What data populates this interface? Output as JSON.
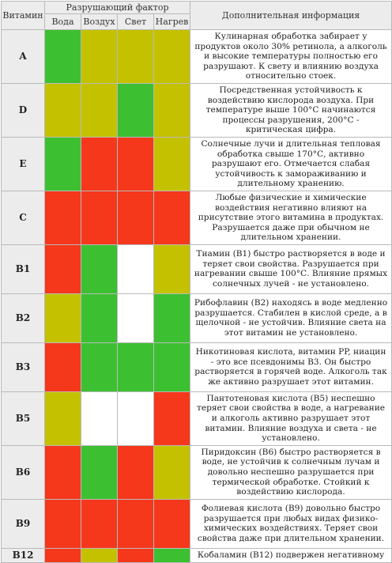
{
  "header": {
    "vitamin": "Витамин",
    "factor": "Разрушающий фактор",
    "columns": [
      "Вода",
      "Воздух",
      "Свет",
      "Нагрев"
    ],
    "info": "Дополнительная информация"
  },
  "colors": {
    "green": "#3cc031",
    "yellow": "#c4c200",
    "red": "#f5371c",
    "white": "#ffffff"
  },
  "rows": [
    {
      "name": "A",
      "cells": [
        "green",
        "yellow",
        "yellow",
        "yellow"
      ],
      "info": "Кулинарная обработка забирает у продуктов около 30% ретинола, а алкоголь и высокие температуры полностью его разрушают. К свету и влиянию воздуха относительно стоек."
    },
    {
      "name": "D",
      "cells": [
        "yellow",
        "yellow",
        "green",
        "yellow"
      ],
      "info": "Посредственная устойчивость к воздействию кислорода воздуха. При температуре выше 100°С начинаются процессы разрушения, 200°С - критическая цифра."
    },
    {
      "name": "E",
      "cells": [
        "green",
        "red",
        "red",
        "yellow"
      ],
      "info": "Солнечные лучи и длительная тепловая обработка свыше 170°С, активно разрушают его. Отмечается слабая устойчивость к замораживанию и длительному хранению."
    },
    {
      "name": "C",
      "cells": [
        "red",
        "red",
        "red",
        "red"
      ],
      "info": "Любые физические и химические воздействия негативно влияют на присутствие этого витамина в продуктах. Разрушается даже при обычном не длительном хранении."
    },
    {
      "name": "B1",
      "cells": [
        "red",
        "green",
        "white",
        "yellow"
      ],
      "info": "Тиамин (B1) быстро растворяется в воде и теряет свои свойства. Разрушается при нагревании свыше 100°С. Влияние прямых солнечных лучей - не установлено."
    },
    {
      "name": "B2",
      "cells": [
        "yellow",
        "green",
        "white",
        "green"
      ],
      "info": "Рибофлавин (B2) находясь в воде медленно разрушается. Стабилен в кислой среде, а в щелочной - не устойчив. Влияние света на этот витамин не установлено."
    },
    {
      "name": "B3",
      "cells": [
        "red",
        "green",
        "green",
        "green"
      ],
      "info": "Никотиновая кислота, витамин PP, ниацин - это все псевдонимы B3. Он быстро растворяется в горячей воде. Алкоголь так же активно разрушает этот витамин."
    },
    {
      "name": "B5",
      "cells": [
        "yellow",
        "white",
        "white",
        "red"
      ],
      "info": "Пантотеновая кислота (B5) неспешно теряет свои свойства в воде, а нагревание и алкоголь активно разрушает этот витамин. Влияние воздуха и света - не установлено."
    },
    {
      "name": "B6",
      "cells": [
        "red",
        "green",
        "red",
        "yellow"
      ],
      "info": "Пиридоксин (B6) быстро растворяется в воде, не устойчив к солнечным лучам и довольно неспешно разрушается при термической обработке. Стойкий к воздействию кислорода."
    },
    {
      "name": "B9",
      "cells": [
        "red",
        "red",
        "red",
        "red"
      ],
      "info": "Фолиевая кислота (B9) довольно быстро разрушается при любых видах физико-химических воздействиях. Теряет свои свойства даже при длительном хранении."
    },
    {
      "name": "B12",
      "cells": [
        "red",
        "yellow",
        "red",
        "green"
      ],
      "info": "Кобаламин (B12) подвержен негативному"
    }
  ]
}
